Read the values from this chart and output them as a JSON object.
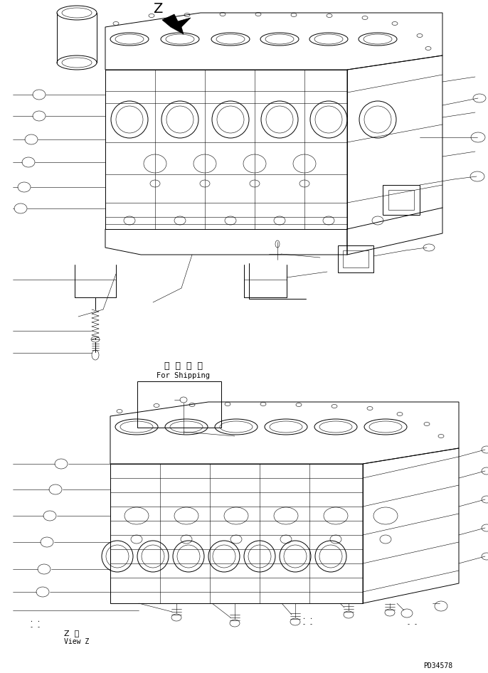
{
  "bg_color": "#ffffff",
  "line_color": "#000000",
  "fig_width": 6.86,
  "fig_height": 9.46,
  "dpi": 100,
  "z_label": "Z",
  "z_view_label1": "Z  視",
  "z_view_label2": "View Z",
  "shipping_label1": "運  携  部  品",
  "shipping_label2": "For Shipping",
  "part_number": "PD34578",
  "thin": 0.4,
  "med": 0.7,
  "thick": 1.2
}
